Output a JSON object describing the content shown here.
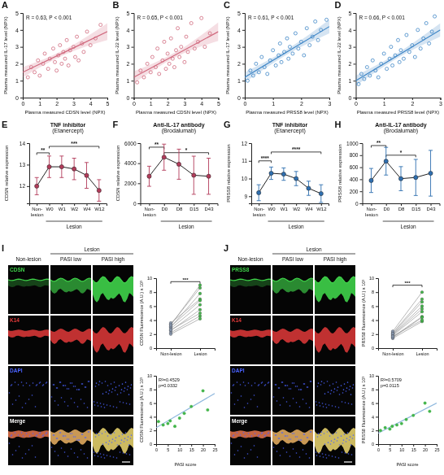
{
  "chart_data": [
    {
      "type": "scatter",
      "panel": "A",
      "x_label": "Plasma measured CDSN level (NPX)",
      "y_label": "Plasma measured IL-17 level (NPX)",
      "annotation": "R = 0.63, P < 0.001",
      "color": "#d0697e",
      "marker": "open-circle",
      "xlim": [
        0,
        5
      ],
      "xticks": [
        0,
        1,
        2,
        3,
        4,
        5
      ],
      "ylim": [
        0,
        5
      ],
      "yticks": [
        0,
        1,
        2,
        3,
        4,
        5
      ],
      "x": [
        0.3,
        0.5,
        0.7,
        0.9,
        1.0,
        1.2,
        1.3,
        1.5,
        1.6,
        1.8,
        1.9,
        2.0,
        2.1,
        2.2,
        2.3,
        2.4,
        2.5,
        2.6,
        2.7,
        2.8,
        3.0,
        3.1,
        3.2,
        3.3,
        3.5,
        3.6,
        3.8,
        4.0,
        4.3,
        4.6
      ],
      "values": [
        1.2,
        1.8,
        1.5,
        2.2,
        1.3,
        2.0,
        2.6,
        1.7,
        2.3,
        2.9,
        2.1,
        1.6,
        2.5,
        3.1,
        2.0,
        2.7,
        2.3,
        3.4,
        1.9,
        2.8,
        3.0,
        2.4,
        3.6,
        2.2,
        3.2,
        2.7,
        3.9,
        3.1,
        3.5,
        4.3
      ],
      "fit": {
        "x": [
          0,
          2.5,
          5
        ],
        "values": [
          1.5,
          2.7,
          3.9
        ],
        "lower": [
          1.2,
          2.55,
          3.4
        ],
        "upper": [
          1.8,
          2.85,
          4.4
        ]
      }
    },
    {
      "type": "scatter",
      "panel": "B",
      "x_label": "Plasma measured CDSN level (NPX)",
      "y_label": "Plasma measured IL-22 level (NPX)",
      "annotation": "R = 0.65, P < 0.001",
      "color": "#d0697e",
      "marker": "open-circle",
      "xlim": [
        0,
        5
      ],
      "xticks": [
        0,
        1,
        2,
        3,
        4,
        5
      ],
      "ylim": [
        0,
        5
      ],
      "yticks": [
        0,
        1,
        2,
        3,
        4,
        5
      ],
      "x": [
        0.2,
        0.4,
        0.6,
        0.8,
        1.0,
        1.1,
        1.3,
        1.4,
        1.5,
        1.7,
        1.8,
        1.9,
        2.0,
        2.1,
        2.2,
        2.3,
        2.4,
        2.5,
        2.6,
        2.7,
        2.8,
        3.0,
        3.1,
        3.2,
        3.4,
        3.6,
        3.8,
        4.0,
        4.2,
        4.5
      ],
      "values": [
        0.9,
        1.6,
        1.2,
        2.0,
        1.5,
        2.4,
        1.8,
        2.9,
        1.4,
        2.2,
        3.3,
        1.7,
        2.6,
        2.0,
        3.5,
        2.3,
        1.8,
        2.8,
        4.1,
        2.4,
        3.0,
        2.1,
        3.6,
        2.7,
        4.4,
        2.9,
        3.3,
        4.7,
        3.0,
        3.8
      ],
      "fit": {
        "x": [
          0,
          2.5,
          5
        ],
        "values": [
          1.2,
          2.55,
          3.9
        ],
        "lower": [
          0.85,
          2.4,
          3.35
        ],
        "upper": [
          1.55,
          2.7,
          4.45
        ]
      }
    },
    {
      "type": "scatter",
      "panel": "C",
      "x_label": "Plasma measured PRSS8 level (NPX)",
      "y_label": "Plasma measured IL-17 level (NPX)",
      "annotation": "R = 0.61, P < 0.001",
      "color": "#3f86c6",
      "marker": "open-circle",
      "xlim": [
        0,
        3
      ],
      "xticks": [
        0,
        1,
        2,
        3
      ],
      "ylim": [
        0,
        5
      ],
      "yticks": [
        0,
        1,
        2,
        3,
        4,
        5
      ],
      "x": [
        0.1,
        0.2,
        0.3,
        0.4,
        0.5,
        0.6,
        0.7,
        0.8,
        0.9,
        1.0,
        1.1,
        1.2,
        1.25,
        1.3,
        1.4,
        1.5,
        1.55,
        1.6,
        1.7,
        1.8,
        1.9,
        2.0,
        2.1,
        2.2,
        2.3,
        2.4,
        2.5,
        2.6,
        2.7,
        2.9
      ],
      "values": [
        1.0,
        1.6,
        1.3,
        2.0,
        1.5,
        2.4,
        1.8,
        1.4,
        2.2,
        2.8,
        1.9,
        2.5,
        3.2,
        2.1,
        2.7,
        3.5,
        2.3,
        3.0,
        2.6,
        3.8,
        2.9,
        3.3,
        2.5,
        4.1,
        3.1,
        3.6,
        4.5,
        3.4,
        4.0,
        4.6
      ],
      "fit": {
        "x": [
          0,
          1.5,
          3
        ],
        "values": [
          1.2,
          2.7,
          4.2
        ],
        "lower": [
          0.9,
          2.55,
          3.8
        ],
        "upper": [
          1.5,
          2.85,
          4.6
        ]
      }
    },
    {
      "type": "scatter",
      "panel": "D",
      "x_label": "Plasma measured PRSS8 level (NPX)",
      "y_label": "Plasma measured IL-22 level (NPX)",
      "annotation": "R = 0.66, P < 0.001",
      "color": "#3f86c6",
      "marker": "open-circle",
      "xlim": [
        0,
        3
      ],
      "xticks": [
        0,
        1,
        2,
        3
      ],
      "ylim": [
        0,
        5
      ],
      "yticks": [
        0,
        1,
        2,
        3,
        4,
        5
      ],
      "x": [
        0.1,
        0.2,
        0.3,
        0.4,
        0.5,
        0.6,
        0.7,
        0.8,
        0.9,
        1.0,
        1.1,
        1.2,
        1.25,
        1.3,
        1.4,
        1.5,
        1.55,
        1.6,
        1.7,
        1.8,
        1.9,
        2.0,
        2.1,
        2.2,
        2.3,
        2.4,
        2.5,
        2.6,
        2.7,
        2.8
      ],
      "values": [
        0.8,
        1.4,
        1.1,
        1.8,
        1.3,
        2.2,
        1.6,
        1.2,
        2.0,
        2.6,
        1.7,
        2.3,
        3.0,
        1.9,
        2.5,
        3.4,
        2.1,
        2.8,
        2.3,
        3.7,
        2.7,
        3.1,
        2.4,
        4.0,
        2.9,
        3.5,
        4.4,
        3.2,
        3.9,
        4.8
      ],
      "fit": {
        "x": [
          0,
          1.5,
          3
        ],
        "values": [
          1.0,
          2.5,
          4.0
        ],
        "lower": [
          0.7,
          2.35,
          3.6
        ],
        "upper": [
          1.3,
          2.65,
          4.4
        ]
      }
    },
    {
      "type": "line",
      "panel": "E",
      "title": "TNF inhibitor",
      "subtitle": "(Etanercept)",
      "y_label": "CDSN relative expression",
      "color": "#b23b5a",
      "marker": "circle",
      "categories": [
        "Non-lesion",
        "W0",
        "W1",
        "W2",
        "W4",
        "W12"
      ],
      "groups": [
        {
          "label": "Lesion",
          "from": 1,
          "to": 5
        }
      ],
      "values": [
        12.0,
        12.9,
        12.9,
        12.8,
        12.5,
        11.8
      ],
      "errors": [
        0.4,
        0.5,
        0.5,
        0.5,
        0.6,
        0.5
      ],
      "ylim": [
        11.2,
        14
      ],
      "yticks": [
        12,
        13,
        14
      ],
      "significance": [
        {
          "from": 0,
          "to": 1,
          "y": 13.55,
          "label": "**"
        },
        {
          "from": 1,
          "to": 5,
          "y": 13.85,
          "label": "***"
        }
      ]
    },
    {
      "type": "line",
      "panel": "F",
      "title": "Anti-IL-17 antibody",
      "subtitle": "(Brodalumab)",
      "y_label": "CDSN relative expression",
      "color": "#b23b5a",
      "marker": "circle",
      "categories": [
        "Non-lesion",
        "D0",
        "D8",
        "D15",
        "D43"
      ],
      "groups": [
        {
          "label": "Lesion",
          "from": 1,
          "to": 4
        }
      ],
      "values": [
        2700,
        4600,
        3900,
        2800,
        2700
      ],
      "errors": [
        1000,
        1300,
        1500,
        1900,
        1800
      ],
      "ylim": [
        0,
        6000
      ],
      "yticks": [
        0,
        2000,
        4000,
        6000
      ],
      "significance": [
        {
          "from": 0,
          "to": 1,
          "y": 5600,
          "label": "**"
        },
        {
          "from": 1,
          "to": 4,
          "y": 5050,
          "label": "*"
        }
      ]
    },
    {
      "type": "line",
      "panel": "G",
      "title": "TNF inhibitor",
      "subtitle": "(Etanercept)",
      "y_label": "PRSS8 relative expression",
      "color": "#2f6fb0",
      "marker": "circle",
      "categories": [
        "Non-lesion",
        "W0",
        "W1",
        "W2",
        "W4",
        "W12"
      ],
      "groups": [
        {
          "label": "Lesion",
          "from": 1,
          "to": 5
        }
      ],
      "values": [
        9.2,
        10.3,
        10.25,
        10.0,
        9.45,
        9.15
      ],
      "errors": [
        0.45,
        0.35,
        0.35,
        0.4,
        0.4,
        0.5
      ],
      "ylim": [
        8.6,
        12
      ],
      "yticks": [
        9,
        10,
        11,
        12
      ],
      "significance": [
        {
          "from": 0,
          "to": 1,
          "y": 11.0,
          "label": "****"
        },
        {
          "from": 1,
          "to": 5,
          "y": 11.5,
          "label": "****"
        }
      ]
    },
    {
      "type": "line",
      "panel": "H",
      "title": "Anti-IL-17 antibody",
      "subtitle": "(Brodalumab)",
      "y_label": "PRSS8 relative expression",
      "color": "#2f6fb0",
      "marker": "circle",
      "categories": [
        "Non-lesion",
        "D0",
        "D8",
        "D15",
        "D43"
      ],
      "groups": [
        {
          "label": "Lesion",
          "from": 1,
          "to": 4
        }
      ],
      "values": [
        380,
        700,
        410,
        430,
        500
      ],
      "errors": [
        200,
        230,
        200,
        300,
        380
      ],
      "ylim": [
        0,
        1000
      ],
      "yticks": [
        0,
        200,
        400,
        600,
        800,
        1000
      ],
      "significance": [
        {
          "from": 0,
          "to": 1,
          "y": 960,
          "label": "**"
        },
        {
          "from": 1,
          "to": 3,
          "y": 800,
          "label": "*"
        }
      ]
    },
    {
      "type": "paired",
      "y_label": "CDSN Fluorescence (A.U.) x 10³",
      "categories": [
        "Non-lesion",
        "Lesion"
      ],
      "colors": [
        "#8796ad",
        "#43b54a"
      ],
      "marker": "circle",
      "ylim": [
        0,
        10
      ],
      "yticks": [
        0,
        2,
        4,
        6,
        8,
        10
      ],
      "series": [
        {
          "values": [
            2.5,
            5.5
          ]
        },
        {
          "values": [
            3.0,
            7.8
          ]
        },
        {
          "values": [
            2.2,
            4.6
          ]
        },
        {
          "values": [
            3.4,
            8.6
          ]
        },
        {
          "values": [
            2.8,
            6.2
          ]
        },
        {
          "values": [
            3.6,
            7.0
          ]
        },
        {
          "values": [
            2.0,
            4.2
          ]
        },
        {
          "values": [
            3.1,
            6.8
          ]
        },
        {
          "values": [
            2.6,
            5.0
          ]
        },
        {
          "values": [
            3.3,
            9.0
          ]
        }
      ],
      "significance": [
        {
          "from": 0,
          "to": 1,
          "y": 9.5,
          "label": "***"
        }
      ]
    },
    {
      "type": "scatter",
      "x_label": "PASI score",
      "y_label": "CDSN Fluorescence (A.U.) x 10³",
      "annotation": [
        "R²=0.4529",
        "p=0.0332"
      ],
      "color": "#43b54a",
      "marker": "circle",
      "xlim": [
        0,
        25
      ],
      "xticks": [
        0,
        5,
        10,
        15,
        20,
        25
      ],
      "ylim": [
        0,
        10
      ],
      "yticks": [
        0,
        2,
        4,
        6,
        8,
        10
      ],
      "x": [
        1,
        3,
        5,
        6,
        8,
        10,
        12,
        15,
        20,
        22
      ],
      "values": [
        3.3,
        2.8,
        3.0,
        3.4,
        2.6,
        3.8,
        4.5,
        5.5,
        7.8,
        5.0
      ],
      "fit": {
        "x": [
          0,
          25
        ],
        "values": [
          2.4,
          7.4
        ]
      }
    },
    {
      "type": "paired",
      "y_label": "PRSS8 Fluorescence (A.U.) x 10³",
      "categories": [
        "Non-lesion",
        "Lesion"
      ],
      "colors": [
        "#8796ad",
        "#43b54a"
      ],
      "marker": "circle",
      "ylim": [
        0,
        10
      ],
      "yticks": [
        0,
        2,
        4,
        6,
        8,
        10
      ],
      "series": [
        {
          "values": [
            1.6,
            4.5
          ]
        },
        {
          "values": [
            2.0,
            6.0
          ]
        },
        {
          "values": [
            1.4,
            3.8
          ]
        },
        {
          "values": [
            2.2,
            7.0
          ]
        },
        {
          "values": [
            1.8,
            5.2
          ]
        },
        {
          "values": [
            1.5,
            4.4
          ]
        },
        {
          "values": [
            2.4,
            8.0
          ]
        },
        {
          "values": [
            1.9,
            5.6
          ]
        },
        {
          "values": [
            1.7,
            4.0
          ]
        },
        {
          "values": [
            2.1,
            6.6
          ]
        }
      ],
      "significance": [
        {
          "from": 0,
          "to": 1,
          "y": 9.0,
          "label": "***"
        }
      ]
    },
    {
      "type": "scatter",
      "x_label": "PASI score",
      "y_label": "PRSS8 Fluorescence (A.U.) x 10³",
      "annotation": [
        "R²=0.5709",
        "p=0.0115"
      ],
      "color": "#43b54a",
      "marker": "circle",
      "xlim": [
        0,
        25
      ],
      "xticks": [
        0,
        5,
        10,
        15,
        20,
        25
      ],
      "ylim": [
        0,
        10
      ],
      "yticks": [
        0,
        2,
        4,
        6,
        8,
        10
      ],
      "x": [
        1,
        3,
        5,
        6,
        8,
        10,
        12,
        15,
        20,
        22
      ],
      "values": [
        2.0,
        2.4,
        2.2,
        2.6,
        2.8,
        3.0,
        3.6,
        4.2,
        6.0,
        4.8
      ],
      "fit": {
        "x": [
          0,
          25
        ],
        "values": [
          1.6,
          6.0
        ]
      }
    }
  ],
  "micrographs": [
    {
      "panel": "I",
      "columns": [
        "Non-lesion",
        "PASI low",
        "PASI high"
      ],
      "group": {
        "label": "Lesion",
        "from": 1,
        "to": 2
      },
      "channels": [
        {
          "name": "CDSN",
          "color": "#3fd34a"
        },
        {
          "name": "K14",
          "color": "#e23a3a"
        },
        {
          "name": "DAPI",
          "color": "#4a63ff"
        },
        {
          "name": "Merge",
          "color": "#ffffff"
        }
      ]
    },
    {
      "panel": "J",
      "columns": [
        "Non-lesion",
        "PASI low",
        "PASI high"
      ],
      "group": {
        "label": "Lesion",
        "from": 1,
        "to": 2
      },
      "channels": [
        {
          "name": "PRSS8",
          "color": "#3fd34a"
        },
        {
          "name": "K14",
          "color": "#e23a3a"
        },
        {
          "name": "DAPI",
          "color": "#4a63ff"
        },
        {
          "name": "Merge",
          "color": "#ffffff"
        }
      ]
    }
  ]
}
